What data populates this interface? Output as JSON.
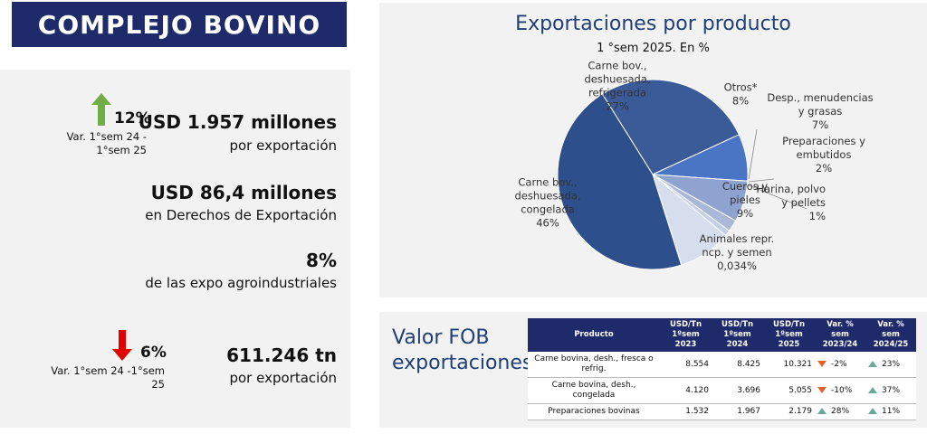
{
  "header": {
    "title": "COMPLEJO BOVINO"
  },
  "kpis": {
    "export_growth_pct": "12%",
    "export_growth_label_1": "Var.  1°sem 24 -",
    "export_growth_label_2": "1°sem 25",
    "export_value": "USD 1.957 millones",
    "export_value_sub": "por exportación",
    "duties_value": "USD 86,4 millones",
    "duties_sub": "en Derechos de Exportación",
    "agro_share": "8%",
    "agro_share_sub": "de las expo agroindustriales",
    "volume_change_pct": "6%",
    "volume_change_label_1": "Var.  1°sem 24 -1°sem",
    "volume_change_label_2": "25",
    "volume_value": "611.246 tn",
    "volume_sub": "por exportación"
  },
  "colors": {
    "navy": "#1f2a6b",
    "up_arrow": "#70ad47",
    "down_arrow": "#e00000"
  },
  "chart_data": {
    "type": "pie",
    "title": "Exportaciones por producto",
    "subtitle": "1 °sem 2025. En %",
    "slices": [
      {
        "label_lines": [
          "Carne bov.,",
          "deshuesada,",
          "refrigerada",
          "27%"
        ],
        "value": 27,
        "color": "#3a5a98"
      },
      {
        "label_lines": [
          "Otros*",
          "8%"
        ],
        "value": 8,
        "color": "#4a74c4"
      },
      {
        "label_lines": [
          "Desp., menudencias",
          "y grasas",
          "7%"
        ],
        "value": 7,
        "color": "#8ea3cf"
      },
      {
        "label_lines": [
          "Preparaciones y",
          "embutidos",
          "2%"
        ],
        "value": 2,
        "color": "#a9b8d9"
      },
      {
        "label_lines": [
          "Harina, polvo",
          "y pellets",
          "1%"
        ],
        "value": 1,
        "color": "#c3cfe6"
      },
      {
        "label_lines": [
          "Cueros y",
          "pieles",
          "9%"
        ],
        "value": 9,
        "color": "#d6deee"
      },
      {
        "label_lines": [
          "Animales repr.",
          "ncp. y semen",
          "0,034%"
        ],
        "value": 0.034,
        "color": "#e3e9f4"
      },
      {
        "label_lines": [
          "Carne bov.,",
          "deshuesada,",
          "congelada",
          "46%"
        ],
        "value": 46,
        "color": "#2d4f8c"
      }
    ]
  },
  "fob": {
    "title_line1": "Valor FOB",
    "title_line2": "exportaciones",
    "headers": [
      [
        "Producto"
      ],
      [
        "USD/Tn",
        "1ºsem 2023"
      ],
      [
        "USD/Tn",
        "1ºsem 2024"
      ],
      [
        "USD/Tn",
        "1ºsem 2025"
      ],
      [
        "Var. % sem",
        "2023/24"
      ],
      [
        "Var. % sem",
        "2024/25"
      ]
    ],
    "rows": [
      {
        "producto": "Carne bovina, desh., fresca o refrig.",
        "v2023": "8.554",
        "v2024": "8.425",
        "v2025": "10.321",
        "var1": "-2%",
        "var1_dir": "down",
        "var2": "23%",
        "var2_dir": "up"
      },
      {
        "producto": "Carne bovina, desh., congelada",
        "v2023": "4.120",
        "v2024": "3.696",
        "v2025": "5.055",
        "var1": "-10%",
        "var1_dir": "down",
        "var2": "37%",
        "var2_dir": "up"
      },
      {
        "producto": "Preparaciones bovinas",
        "v2023": "1.532",
        "v2024": "1.967",
        "v2025": "2.179",
        "var1": "28%",
        "var1_dir": "up",
        "var2": "11%",
        "var2_dir": "up"
      }
    ]
  }
}
